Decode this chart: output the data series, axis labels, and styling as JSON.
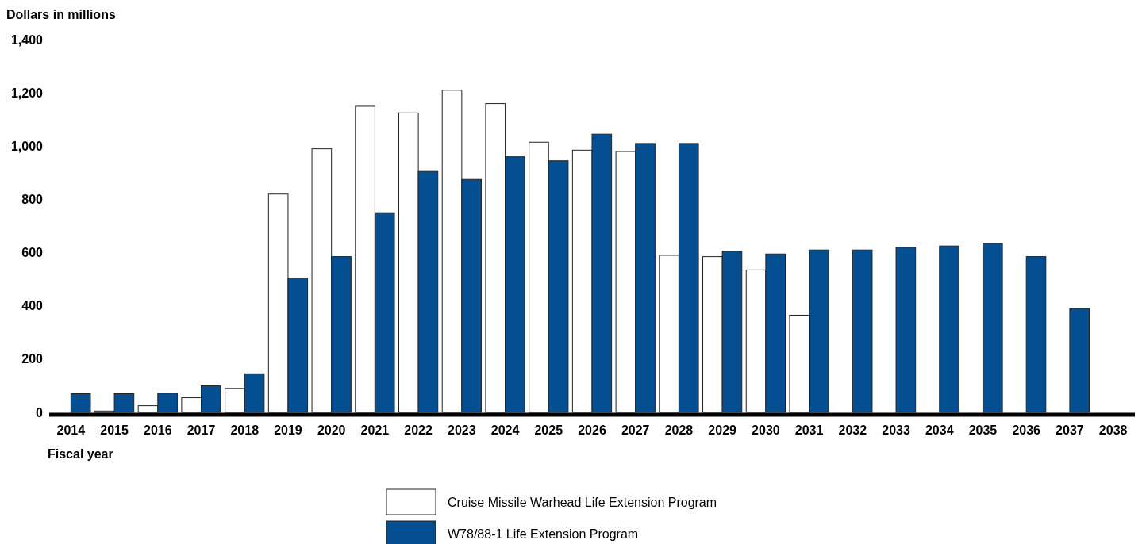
{
  "chart_data": {
    "type": "bar",
    "ylabel": "Dollars in millions",
    "xlabel": "Fiscal year",
    "categories": [
      "2014",
      "2015",
      "2016",
      "2017",
      "2018",
      "2019",
      "2020",
      "2021",
      "2022",
      "2023",
      "2024",
      "2025",
      "2026",
      "2027",
      "2028",
      "2029",
      "2030",
      "2031",
      "2032",
      "2033",
      "2034",
      "2035",
      "2036",
      "2037",
      "2038"
    ],
    "series": [
      {
        "name": "Cruise Missile Warhead Life Extension Program",
        "color": "#ffffff",
        "values": [
          null,
          5,
          25,
          55,
          90,
          820,
          990,
          1150,
          1125,
          1210,
          1160,
          1015,
          985,
          980,
          590,
          585,
          535,
          365,
          null,
          null,
          null,
          null,
          null,
          null,
          null
        ]
      },
      {
        "name": "W78/88-1 Life Extension Program",
        "color": "#044f92",
        "values": [
          70,
          70,
          72,
          100,
          145,
          505,
          585,
          750,
          905,
          875,
          960,
          945,
          1045,
          1010,
          1010,
          605,
          595,
          610,
          610,
          620,
          625,
          635,
          585,
          390,
          null
        ]
      }
    ],
    "ylim": [
      0,
      1400
    ],
    "yticks": [
      0,
      {
        "value": 200,
        "label": "200"
      },
      {
        "value": 400,
        "label": "400"
      },
      {
        "value": 600,
        "label": "600"
      },
      {
        "value": 800,
        "label": "800"
      },
      {
        "value": 1000,
        "label": "1,000"
      },
      {
        "value": 1200,
        "label": "1,200"
      },
      {
        "value": 1400,
        "label": "1,400"
      }
    ],
    "grid": false,
    "legend": "bottom"
  }
}
